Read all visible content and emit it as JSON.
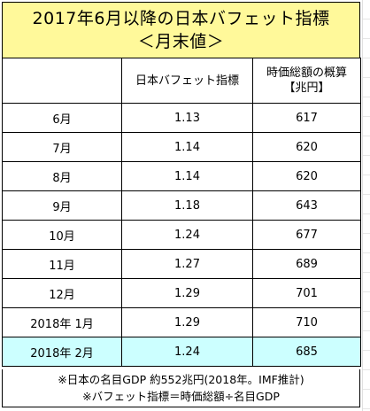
{
  "title": {
    "line1": "2017年6月以降の日本バフェット指標",
    "line2": "＜月末値＞"
  },
  "table": {
    "headers": {
      "month": "",
      "buffett_index": "日本バフェット指標",
      "market_cap_line1": "時価総額の概算",
      "market_cap_line2": "【兆円】"
    },
    "rows": [
      {
        "month": "6月",
        "index": "1.13",
        "cap": "617",
        "highlight": false
      },
      {
        "month": "7月",
        "index": "1.14",
        "cap": "620",
        "highlight": false
      },
      {
        "month": "8月",
        "index": "1.14",
        "cap": "620",
        "highlight": false
      },
      {
        "month": "9月",
        "index": "1.18",
        "cap": "643",
        "highlight": false
      },
      {
        "month": "10月",
        "index": "1.24",
        "cap": "677",
        "highlight": false
      },
      {
        "month": "11月",
        "index": "1.27",
        "cap": "689",
        "highlight": false
      },
      {
        "month": "12月",
        "index": "1.29",
        "cap": "701",
        "highlight": false
      },
      {
        "month": "2018年 1月",
        "index": "1.29",
        "cap": "710",
        "highlight": false
      },
      {
        "month": "2018年 2月",
        "index": "1.24",
        "cap": "685",
        "highlight": true
      }
    ]
  },
  "notes": {
    "line1": "※日本の名目GDP 約552兆円(2018年。IMF推計)",
    "line2": "※バフェット指標＝時価総額÷名目GDP"
  },
  "colors": {
    "title_bg": "#fff99a",
    "highlight_row_bg": "#ccffff",
    "border": "#000000"
  }
}
